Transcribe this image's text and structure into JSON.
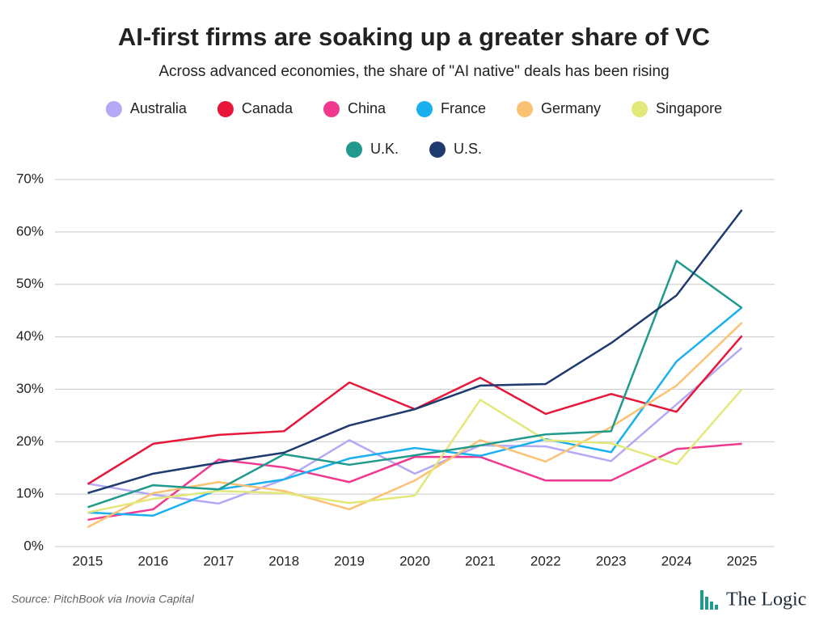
{
  "chart_data": {
    "type": "line",
    "title": "AI-first firms are soaking up a greater share of VC",
    "subtitle": "Across advanced economies, the share of \"AI native\" deals has been rising",
    "categories": [
      "2015",
      "2016",
      "2017",
      "2018",
      "2019",
      "2020",
      "2021",
      "2022",
      "2023",
      "2024",
      "2025"
    ],
    "series": [
      {
        "name": "Australia",
        "color": "#b3a9f5",
        "values": [
          12,
          9.9,
          8.2,
          12.8,
          20.3,
          13.9,
          19.3,
          19.1,
          16.3,
          27.1,
          37.9
        ]
      },
      {
        "name": "Canada",
        "color": "#e8173a",
        "values": [
          11.9,
          19.6,
          21.3,
          22,
          31.3,
          26.2,
          32.2,
          25.3,
          29.1,
          25.7,
          40.2
        ]
      },
      {
        "name": "China",
        "color": "#f0388f",
        "values": [
          5.1,
          7.1,
          16.6,
          15.1,
          12.3,
          17.1,
          17.1,
          12.6,
          12.6,
          18.6,
          19.6
        ]
      },
      {
        "name": "France",
        "color": "#1ab0f0",
        "values": [
          6.5,
          5.9,
          10.9,
          12.8,
          16.8,
          18.8,
          17.3,
          20.5,
          18,
          35.3,
          45.6
        ]
      },
      {
        "name": "Germany",
        "color": "#fcc273",
        "values": [
          3.7,
          10.2,
          12.3,
          10.6,
          7.1,
          12.6,
          20.3,
          16.2,
          22.8,
          30.7,
          42.7
        ]
      },
      {
        "name": "Singapore",
        "color": "#e2e87a",
        "values": [
          6.5,
          9.1,
          10.6,
          10.2,
          8.3,
          9.7,
          28,
          20.3,
          19.7,
          15.7,
          30
        ]
      },
      {
        "name": "U.K.",
        "color": "#1f9a8c",
        "values": [
          7.5,
          11.7,
          10.9,
          17.6,
          15.6,
          17.4,
          19.3,
          21.4,
          22,
          54.5,
          45.5
        ]
      },
      {
        "name": "U.S.",
        "color": "#1e3a6e",
        "values": [
          10.2,
          13.9,
          16,
          17.9,
          23.1,
          26.2,
          30.7,
          31,
          38.8,
          47.9,
          64.2
        ]
      }
    ],
    "ylim": [
      0,
      70
    ],
    "yticks": [
      {
        "value": 0,
        "label": "0%"
      },
      {
        "value": 10,
        "label": "10%"
      },
      {
        "value": 20,
        "label": "20%"
      },
      {
        "value": 30,
        "label": "30%"
      },
      {
        "value": 40,
        "label": "40%"
      },
      {
        "value": 50,
        "label": "50%"
      },
      {
        "value": 60,
        "label": "60%"
      },
      {
        "value": 70,
        "label": "70%"
      }
    ],
    "grid": true,
    "source": "Source: PitchBook via Inovia Capital",
    "brand": "The Logic"
  }
}
